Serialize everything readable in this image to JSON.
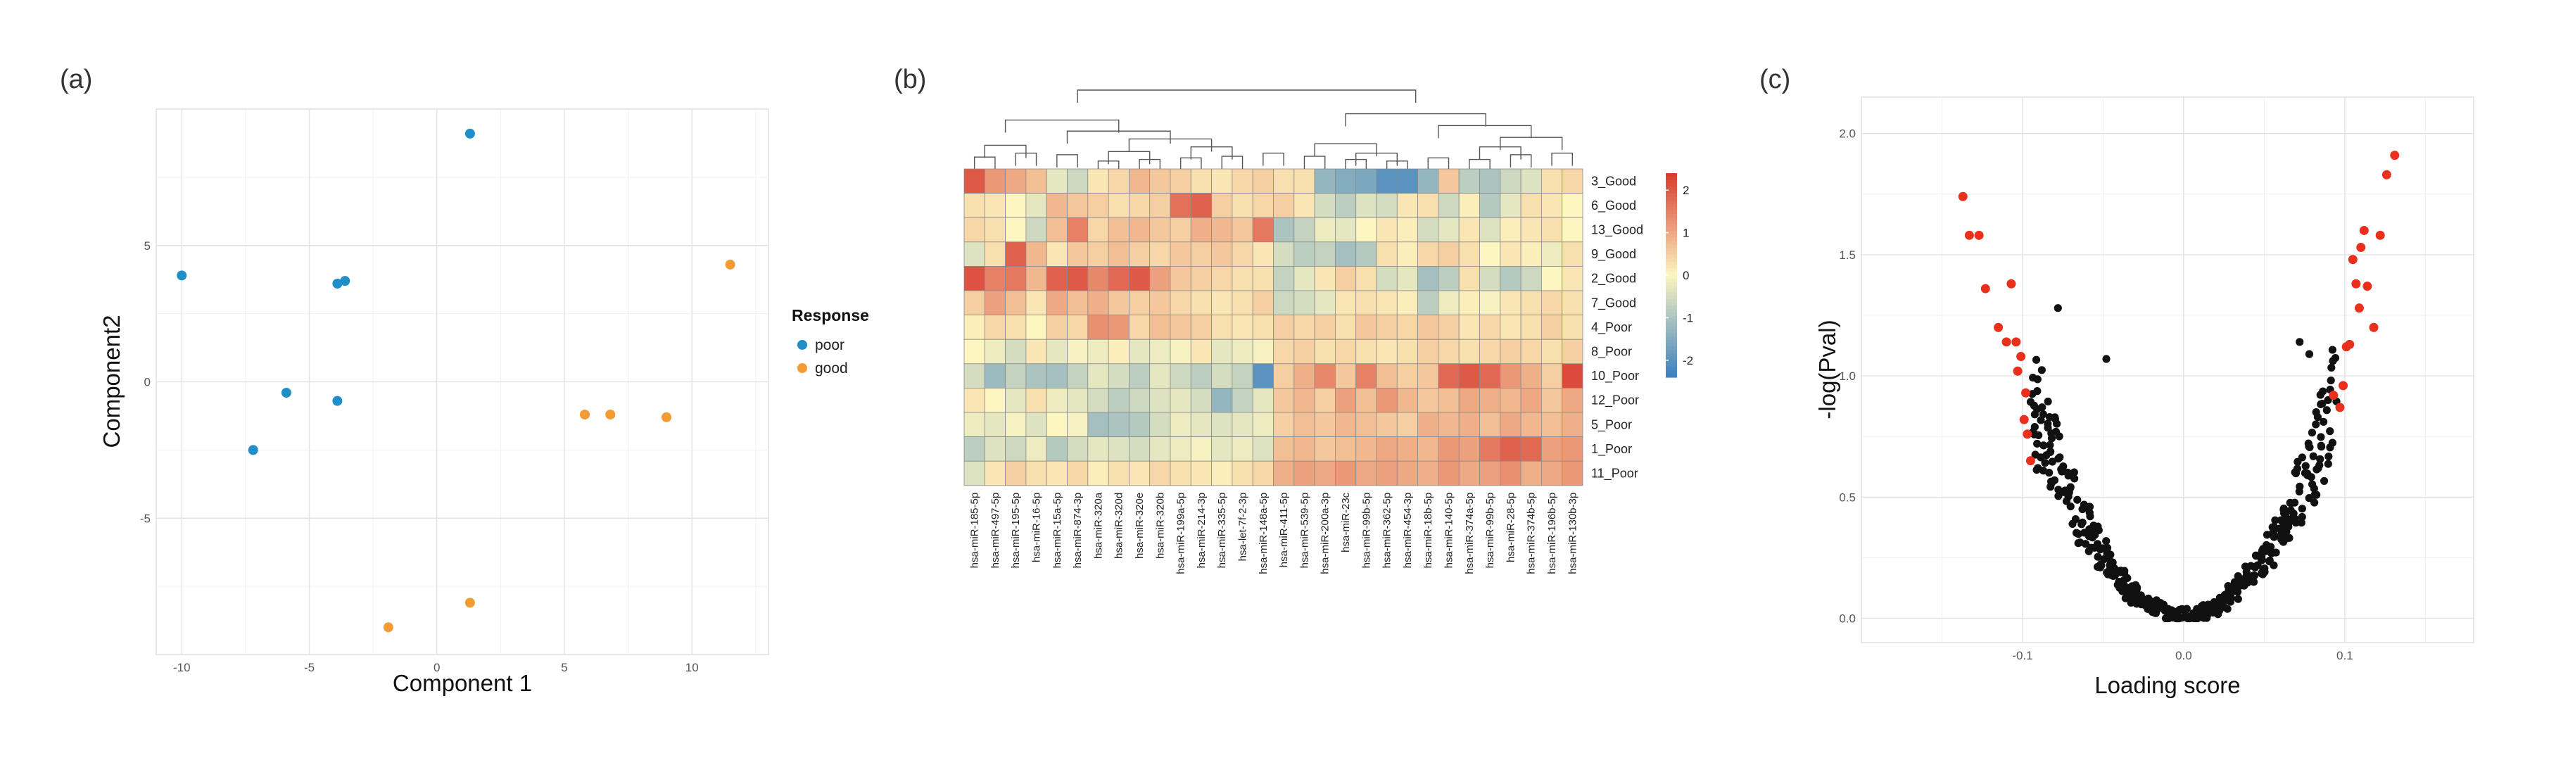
{
  "chart_data": [
    {
      "panel_label": "(a)",
      "type": "scatter",
      "xlabel": "Component 1",
      "ylabel": "Component2",
      "xlim": [
        -11,
        13
      ],
      "ylim": [
        -10,
        10
      ],
      "xticks": [
        "-10",
        "-5",
        "0",
        "5",
        "10"
      ],
      "xtick_values": [
        -10,
        -5,
        0,
        5,
        10
      ],
      "yticks": [
        "5",
        "0",
        "-5"
      ],
      "ytick_values": [
        5,
        0,
        -5
      ],
      "legend": {
        "title": "Response",
        "position": "right"
      },
      "series": [
        {
          "name": "poor",
          "color": "#1f8ec9",
          "x": [
            1.3,
            -10.0,
            -3.9,
            -3.6,
            -5.9,
            -3.9,
            -7.2
          ],
          "y": [
            9.1,
            3.9,
            3.6,
            3.7,
            -0.4,
            -0.7,
            -2.5
          ]
        },
        {
          "name": "good",
          "color": "#f39b35",
          "x": [
            11.5,
            5.8,
            6.8,
            9.0,
            1.3,
            -1.9
          ],
          "y": [
            4.3,
            -1.2,
            -1.2,
            -1.3,
            -8.1,
            -9.0
          ]
        }
      ]
    },
    {
      "panel_label": "(b)",
      "type": "heatmap",
      "rows": [
        "3_Good",
        "6_Good",
        "13_Good",
        "9_Good",
        "2_Good",
        "7_Good",
        "4_Poor",
        "8_Poor",
        "10_Poor",
        "12_Poor",
        "5_Poor",
        "1_Poor",
        "11_Poor"
      ],
      "columns": [
        "hsa-miR-185-5p",
        "hsa-miR-497-5p",
        "hsa-miR-195-5p",
        "hsa-miR-16-5p",
        "hsa-miR-15a-5p",
        "hsa-miR-874-3p",
        "hsa-miR-320a",
        "hsa-miR-320d",
        "hsa-miR-320e",
        "hsa-miR-320b",
        "hsa-miR-199a-5p",
        "hsa-miR-214-3p",
        "hsa-miR-335-5p",
        "hsa-let-7f-2-3p",
        "hsa-miR-148a-5p",
        "hsa-miR-411-5p",
        "hsa-miR-539-5p",
        "hsa-miR-200a-3p",
        "hsa-miR-23c",
        "hsa-miR-99b-5p",
        "hsa-miR-362-5p",
        "hsa-miR-454-3p",
        "hsa-miR-18b-5p",
        "hsa-miR-140-5p",
        "hsa-miR-374a-5p",
        "hsa-miR-99b-5p",
        "hsa-miR-28-5p",
        "hsa-miR-374b-5p",
        "hsa-miR-196b-5p",
        "hsa-miR-130b-3p"
      ],
      "values": [
        [
          2.0,
          1.2,
          1.0,
          0.7,
          -0.3,
          -0.6,
          0.2,
          0.4,
          0.8,
          0.6,
          0.5,
          0.3,
          0.2,
          0.4,
          0.5,
          0.3,
          0.3,
          -1.3,
          -1.5,
          -1.6,
          -2.0,
          -2.0,
          -1.3,
          0.6,
          -0.8,
          -1.0,
          -0.6,
          -0.4,
          0.3,
          0.4
        ],
        [
          0.3,
          0.2,
          0.0,
          -0.3,
          0.8,
          0.6,
          0.5,
          0.3,
          0.4,
          0.5,
          1.7,
          1.9,
          0.5,
          0.3,
          0.4,
          0.5,
          0.2,
          -0.5,
          -0.8,
          -0.4,
          -0.5,
          0.2,
          0.3,
          -0.6,
          0.1,
          -0.9,
          -0.3,
          0.3,
          0.2,
          0.0
        ],
        [
          0.4,
          0.3,
          0.0,
          -0.6,
          0.7,
          1.5,
          0.4,
          0.7,
          0.8,
          0.6,
          0.5,
          0.9,
          0.8,
          0.6,
          1.6,
          -1.0,
          -0.7,
          -0.2,
          -0.3,
          0.0,
          0.2,
          0.1,
          -0.5,
          -0.3,
          0.2,
          -0.4,
          0.1,
          0.2,
          0.3,
          0.0
        ],
        [
          -0.4,
          0.3,
          1.9,
          0.8,
          0.2,
          0.6,
          0.5,
          0.7,
          0.5,
          0.4,
          0.6,
          0.5,
          0.6,
          0.4,
          0.2,
          -0.5,
          -0.8,
          -0.7,
          -1.1,
          -0.9,
          0.3,
          0.1,
          0.4,
          0.5,
          0.3,
          0.0,
          0.2,
          0.1,
          -0.2,
          0.3
        ],
        [
          2.1,
          1.5,
          1.6,
          0.8,
          1.9,
          2.0,
          1.4,
          1.8,
          2.0,
          1.1,
          0.6,
          0.5,
          0.4,
          0.3,
          0.3,
          -0.7,
          -0.3,
          0.2,
          0.5,
          0.3,
          -0.5,
          -0.3,
          -1.1,
          -0.8,
          0.3,
          -0.5,
          -0.9,
          -0.6,
          0.0,
          0.2
        ],
        [
          0.5,
          1.1,
          0.7,
          0.2,
          1.0,
          0.7,
          0.9,
          0.6,
          0.5,
          0.6,
          0.4,
          0.3,
          0.2,
          0.3,
          0.5,
          -0.6,
          -0.5,
          -0.3,
          0.2,
          0.3,
          0.2,
          0.1,
          -0.8,
          -0.2,
          0.1,
          -0.1,
          0.2,
          0.3,
          0.4,
          0.3
        ],
        [
          0.1,
          0.4,
          0.3,
          0.0,
          0.5,
          0.4,
          1.3,
          1.2,
          0.4,
          0.7,
          0.6,
          0.5,
          0.3,
          0.2,
          0.3,
          0.5,
          0.4,
          0.5,
          0.3,
          0.6,
          0.5,
          0.4,
          0.6,
          0.5,
          0.2,
          0.4,
          0.2,
          0.3,
          0.5,
          0.3
        ],
        [
          0.0,
          -0.2,
          -0.5,
          0.2,
          -0.3,
          -0.1,
          -0.2,
          0.1,
          -0.3,
          -0.2,
          -0.1,
          0.2,
          -0.3,
          -0.2,
          -0.1,
          0.4,
          0.5,
          0.3,
          0.4,
          0.3,
          0.2,
          0.3,
          0.5,
          0.4,
          0.3,
          0.4,
          0.5,
          0.4,
          0.3,
          0.5
        ],
        [
          -0.5,
          -1.2,
          -0.7,
          -1.0,
          -1.1,
          -0.7,
          -0.3,
          -0.5,
          -0.8,
          -0.3,
          -0.6,
          -0.8,
          -0.5,
          -0.7,
          -2.0,
          0.5,
          0.9,
          1.4,
          0.6,
          1.5,
          0.7,
          0.5,
          0.6,
          1.8,
          2.0,
          1.8,
          1.2,
          0.9,
          0.5,
          2.2
        ],
        [
          0.2,
          0.0,
          -0.3,
          0.3,
          -0.2,
          -0.3,
          -0.5,
          -0.8,
          -0.6,
          -0.4,
          -0.3,
          -0.5,
          -1.3,
          -0.7,
          -0.3,
          0.6,
          0.8,
          0.5,
          1.1,
          0.7,
          1.2,
          0.8,
          0.6,
          0.7,
          1.0,
          0.9,
          0.8,
          1.0,
          0.6,
          1.0
        ],
        [
          -0.2,
          -0.3,
          -0.1,
          -0.4,
          0.0,
          -0.1,
          -1.1,
          -1.0,
          -0.9,
          -0.5,
          -0.2,
          -0.3,
          -0.4,
          -0.3,
          -0.2,
          0.5,
          0.7,
          0.6,
          0.8,
          0.7,
          0.6,
          0.5,
          0.9,
          0.8,
          0.9,
          0.7,
          1.0,
          0.8,
          0.7,
          0.9
        ],
        [
          -0.8,
          -0.4,
          -0.6,
          -0.2,
          -0.9,
          -0.5,
          -0.3,
          -0.4,
          -0.5,
          -0.3,
          -0.2,
          -0.1,
          -0.3,
          -0.2,
          -0.4,
          0.7,
          0.8,
          0.6,
          0.7,
          0.8,
          1.0,
          0.9,
          0.8,
          1.2,
          1.1,
          1.6,
          1.9,
          1.8,
          1.1,
          1.2
        ],
        [
          -0.4,
          0.2,
          0.5,
          0.3,
          0.2,
          0.4,
          0.1,
          0.3,
          0.2,
          0.4,
          0.3,
          0.2,
          0.1,
          0.3,
          0.4,
          0.9,
          1.1,
          1.0,
          1.2,
          1.0,
          1.1,
          1.0,
          0.9,
          1.2,
          1.0,
          1.1,
          1.3,
          0.9,
          1.0,
          1.2
        ]
      ],
      "colorbar": {
        "ticks": [
          "2",
          "1",
          "0",
          "-1",
          "-2"
        ],
        "tick_values": [
          2,
          1,
          0,
          -1,
          -2
        ],
        "range": [
          -2.4,
          2.4
        ]
      },
      "colors": {
        "low": "#3a7fbf",
        "mid": "#fdf6c0",
        "high": "#d83a2e"
      }
    },
    {
      "panel_label": "(c)",
      "type": "scatter",
      "xlabel": "Loading score",
      "ylabel": "-log(Pval)",
      "xlim": [
        -0.2,
        0.18
      ],
      "ylim": [
        -0.1,
        2.15
      ],
      "xticks": [
        "-0.1",
        "0.0",
        "0.1"
      ],
      "xtick_values": [
        -0.1,
        0.0,
        0.1
      ],
      "yticks": [
        "2.0",
        "1.5",
        "1.0",
        "0.5",
        "0.0"
      ],
      "ytick_values": [
        2.0,
        1.5,
        1.0,
        0.5,
        0.0
      ],
      "significant": {
        "color": "#e8301c",
        "x": [
          -0.137,
          -0.133,
          -0.127,
          -0.123,
          -0.115,
          -0.11,
          -0.107,
          -0.103,
          -0.104,
          -0.101,
          -0.099,
          -0.097,
          -0.098,
          -0.095,
          0.093,
          0.097,
          0.099,
          0.101,
          0.103,
          0.105,
          0.107,
          0.109,
          0.11,
          0.112,
          0.114,
          0.118,
          0.122,
          0.126,
          0.131
        ],
        "y": [
          1.74,
          1.58,
          1.58,
          1.36,
          1.2,
          1.14,
          1.38,
          1.02,
          1.14,
          1.08,
          0.82,
          0.76,
          0.93,
          0.65,
          0.92,
          0.87,
          0.96,
          1.12,
          1.13,
          1.48,
          1.38,
          1.28,
          1.53,
          1.6,
          1.37,
          1.2,
          1.58,
          1.83,
          1.91
        ]
      },
      "other": {
        "color": "#111111",
        "envelope_coefficient": 130,
        "count": 420,
        "extra_x": [
          -0.078,
          -0.048,
          0.072,
          0.078
        ],
        "extra_y": [
          1.28,
          1.07,
          1.14,
          1.09
        ]
      }
    }
  ]
}
